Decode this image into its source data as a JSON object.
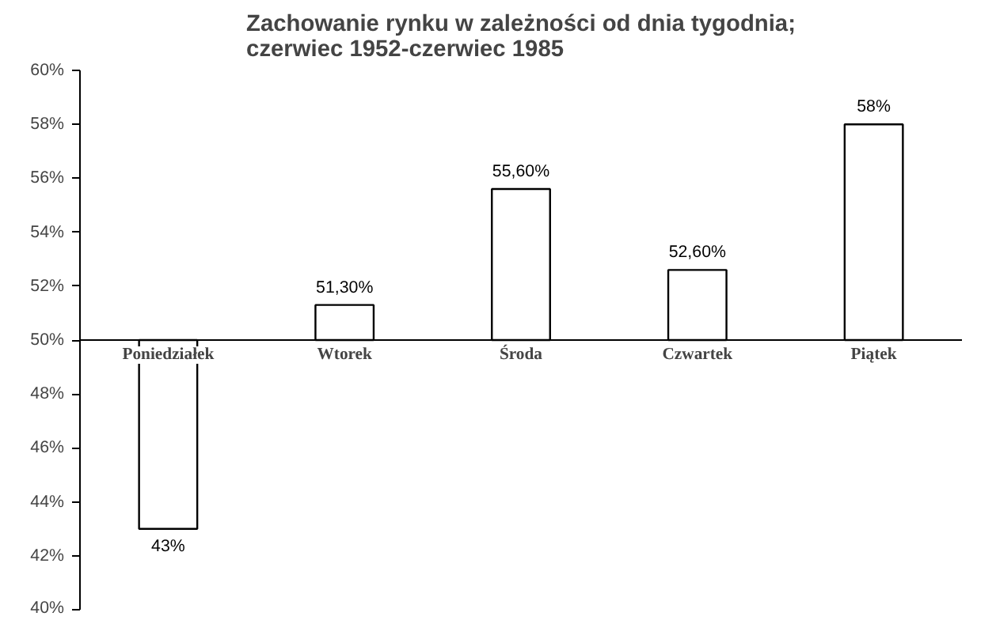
{
  "chart_data": {
    "type": "bar",
    "title": "Zachowanie rynku w zależności od dnia tygodnia;\nczerwiec 1952-czerwiec 1985",
    "categories": [
      "Poniedziałek",
      "Wtorek",
      "Środa",
      "Czwartek",
      "Piątek"
    ],
    "base": [
      50,
      50,
      50,
      50,
      50
    ],
    "values": [
      -7,
      1.3,
      5.6,
      2.6,
      8
    ],
    "value_labels": [
      "43%",
      "51,30%",
      "55,60%",
      "52,60%",
      "58%"
    ],
    "color": "#ffffff",
    "ylim": [
      40,
      60
    ],
    "yticks": [
      {
        "value": 40,
        "label": "40%"
      },
      {
        "value": 42,
        "label": "42%"
      },
      {
        "value": 44,
        "label": "44%"
      },
      {
        "value": 46,
        "label": "46%"
      },
      {
        "value": 48,
        "label": "48%"
      },
      {
        "value": 50,
        "label": "50%"
      },
      {
        "value": 52,
        "label": "52%"
      },
      {
        "value": 54,
        "label": "54%"
      },
      {
        "value": 56,
        "label": "56%"
      },
      {
        "value": 58,
        "label": "58%"
      },
      {
        "value": 60,
        "label": "60%"
      }
    ]
  }
}
